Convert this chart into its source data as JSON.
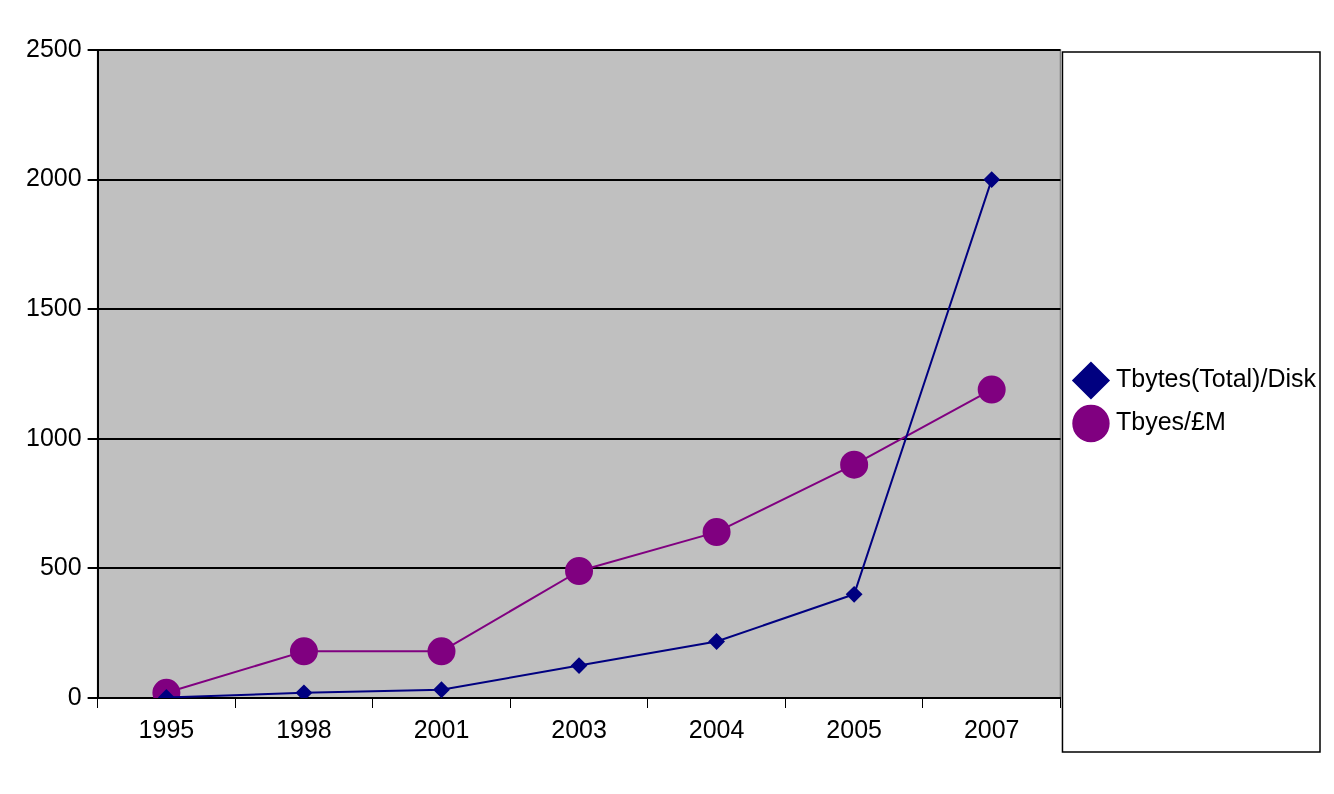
{
  "chart_data": {
    "type": "line",
    "categories": [
      "1995",
      "1998",
      "2001",
      "2003",
      "2004",
      "2005",
      "2007"
    ],
    "series": [
      {
        "name": "Tbytes(Total)/Disk",
        "color": "#000080",
        "marker": "diamond",
        "values": [
          2,
          20,
          32,
          125,
          218,
          400,
          2000
        ]
      },
      {
        "name": "Tbyes/£M",
        "color": "#800080",
        "marker": "circle",
        "values": [
          20,
          180,
          180,
          490,
          640,
          900,
          1190
        ]
      }
    ],
    "ylim": [
      0,
      2500
    ],
    "yticks": [
      0,
      500,
      1000,
      1500,
      2000,
      2500
    ],
    "grid": "y",
    "legend": "right",
    "line_style": "solid"
  }
}
